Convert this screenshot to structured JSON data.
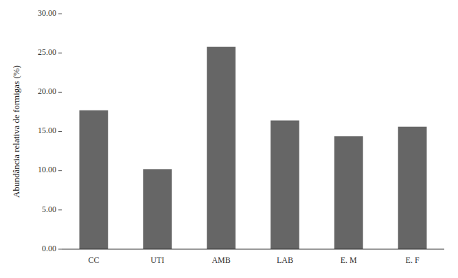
{
  "chart_data": {
    "type": "bar",
    "categories": [
      "CC",
      "UTI",
      "AMB",
      "LAB",
      "E. M",
      "E. F"
    ],
    "values": [
      17.7,
      10.2,
      25.8,
      16.4,
      14.4,
      15.6
    ],
    "color": "#666666",
    "ylabel": "Abundância relativa de formigas (%)",
    "ylim": [
      0,
      30
    ],
    "yticks": [
      {
        "value": 0,
        "label": "0.00"
      },
      {
        "value": 5,
        "label": "5.00"
      },
      {
        "value": 10,
        "label": "10.00"
      },
      {
        "value": 15,
        "label": "15.00"
      },
      {
        "value": 20,
        "label": "20.00"
      },
      {
        "value": 25,
        "label": "25.00"
      },
      {
        "value": 30,
        "label": "30.00"
      }
    ],
    "grid": false
  }
}
